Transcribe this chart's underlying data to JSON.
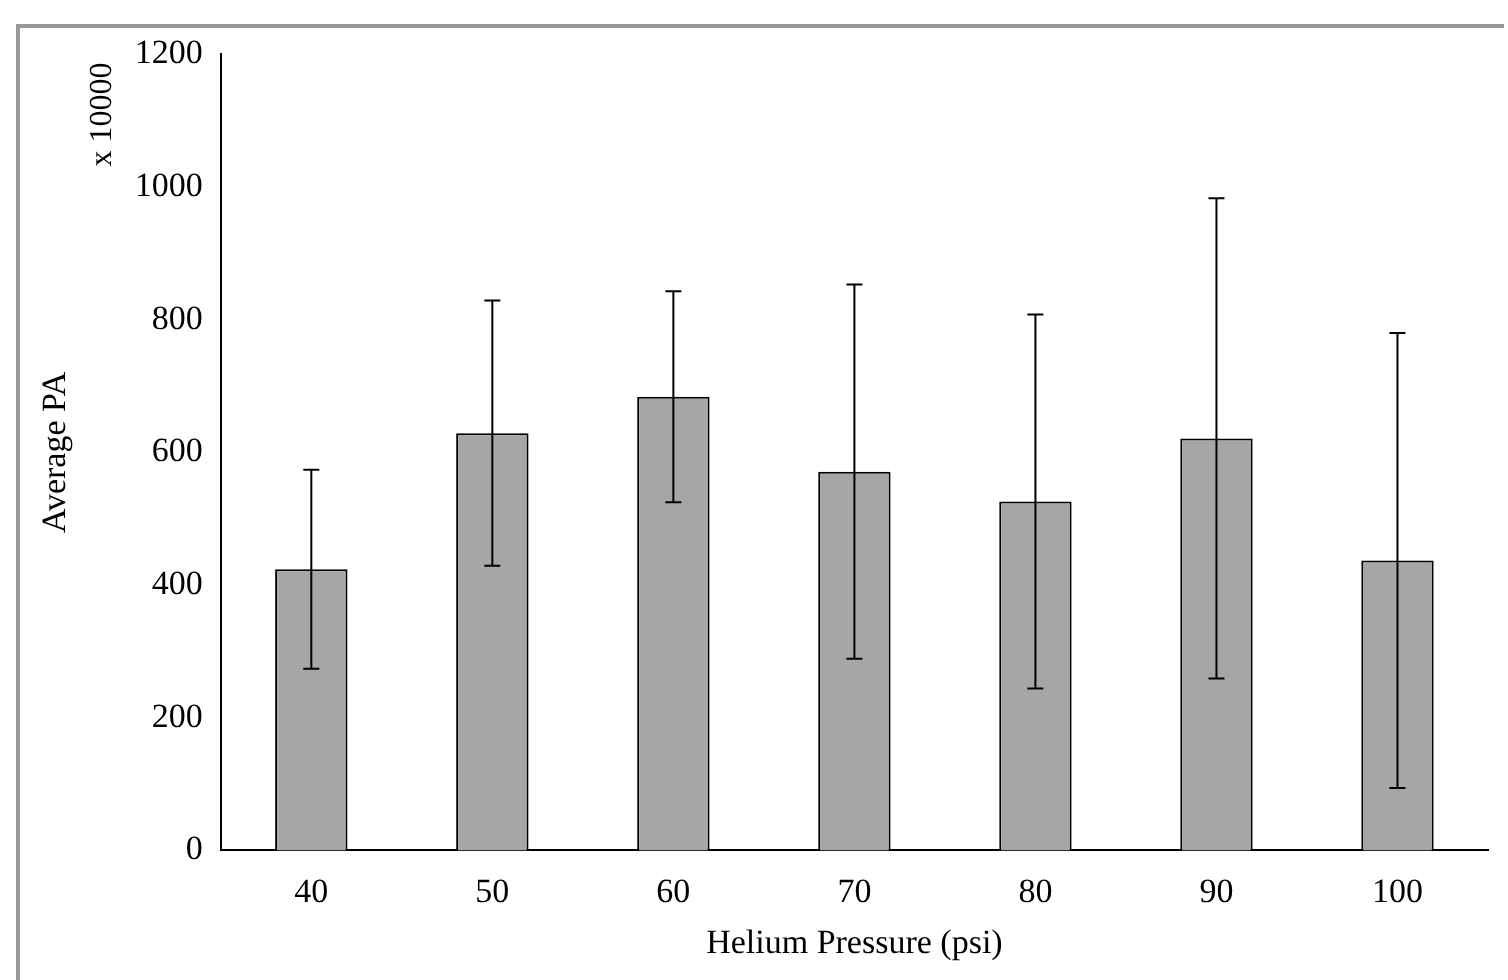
{
  "chart_data": {
    "type": "bar",
    "xlabel": "Helium Pressure (psi)",
    "ylabel": "Average PA",
    "annotations": [
      "x 10000"
    ],
    "categories": [
      "40",
      "50",
      "60",
      "70",
      "80",
      "90",
      "100"
    ],
    "values": [
      424,
      629,
      684,
      571,
      526,
      621,
      437
    ],
    "errors": [
      150,
      200,
      159,
      282,
      282,
      362,
      343
    ],
    "color": "#a6a6a6",
    "ylim": [
      0,
      1200
    ],
    "yticks": [
      0,
      200,
      400,
      600,
      800,
      1000,
      1200
    ],
    "grid": false,
    "legend": false
  }
}
